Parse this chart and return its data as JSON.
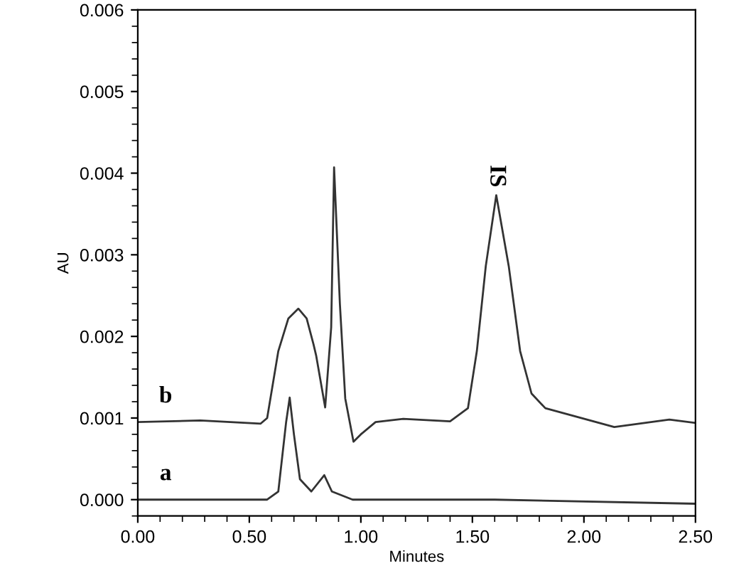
{
  "chart_data": {
    "type": "line",
    "xlabel": "Minutes",
    "ylabel": "AU",
    "xlim": [
      0,
      2.5
    ],
    "ylim": [
      -0.0002,
      0.006
    ],
    "xticks": [
      {
        "value": 0,
        "label": "0.00"
      },
      {
        "value": 0.5,
        "label": "0.50"
      },
      {
        "value": 1.0,
        "label": "1.00"
      },
      {
        "value": 1.5,
        "label": "1.50"
      },
      {
        "value": 2.0,
        "label": "2.00"
      },
      {
        "value": 2.5,
        "label": "2.50"
      }
    ],
    "yticks": [
      {
        "value": 0,
        "label": "0.000"
      },
      {
        "value": 0.001,
        "label": "0.001"
      },
      {
        "value": 0.002,
        "label": "0.002"
      },
      {
        "value": 0.003,
        "label": "0.003"
      },
      {
        "value": 0.004,
        "label": "0.004"
      },
      {
        "value": 0.005,
        "label": "0.005"
      },
      {
        "value": 0.006,
        "label": "0.006"
      }
    ],
    "grid": false,
    "legend": false,
    "marker": "none",
    "line_style": "solid",
    "annotations": [
      {
        "text": "IS",
        "x": 1.607,
        "y": 0.00373
      }
    ],
    "series": [
      {
        "name": "b",
        "color": "#333333",
        "x": [
          0.0,
          0.28,
          0.55,
          0.58,
          0.63,
          0.675,
          0.72,
          0.757,
          0.788,
          0.8,
          0.84,
          0.867,
          0.88,
          0.906,
          0.93,
          0.967,
          1.0,
          1.066,
          1.19,
          1.4,
          1.48,
          1.52,
          1.56,
          1.607,
          1.663,
          1.714,
          1.765,
          1.827,
          2.136,
          2.383,
          2.497
        ],
        "values": [
          0.00095,
          0.00097,
          0.00093,
          0.001,
          0.00182,
          0.00222,
          0.00234,
          0.00222,
          0.0019,
          0.00176,
          0.00113,
          0.00211,
          0.00407,
          0.0024,
          0.00124,
          0.00071,
          0.0008,
          0.00095,
          0.00099,
          0.00096,
          0.00112,
          0.00182,
          0.00286,
          0.00373,
          0.00286,
          0.00182,
          0.0013,
          0.00112,
          0.00089,
          0.00098,
          0.00094
        ]
      },
      {
        "name": "a",
        "color": "#333333",
        "x": [
          0.0,
          0.58,
          0.63,
          0.665,
          0.681,
          0.7,
          0.727,
          0.778,
          0.836,
          0.87,
          0.963,
          1.6,
          2.497
        ],
        "values": [
          0.0,
          0.0,
          0.0001,
          0.00095,
          0.00125,
          0.0008,
          0.00025,
          0.0001,
          0.0003,
          0.0001,
          0.0,
          0.0,
          -5e-05
        ]
      }
    ]
  }
}
